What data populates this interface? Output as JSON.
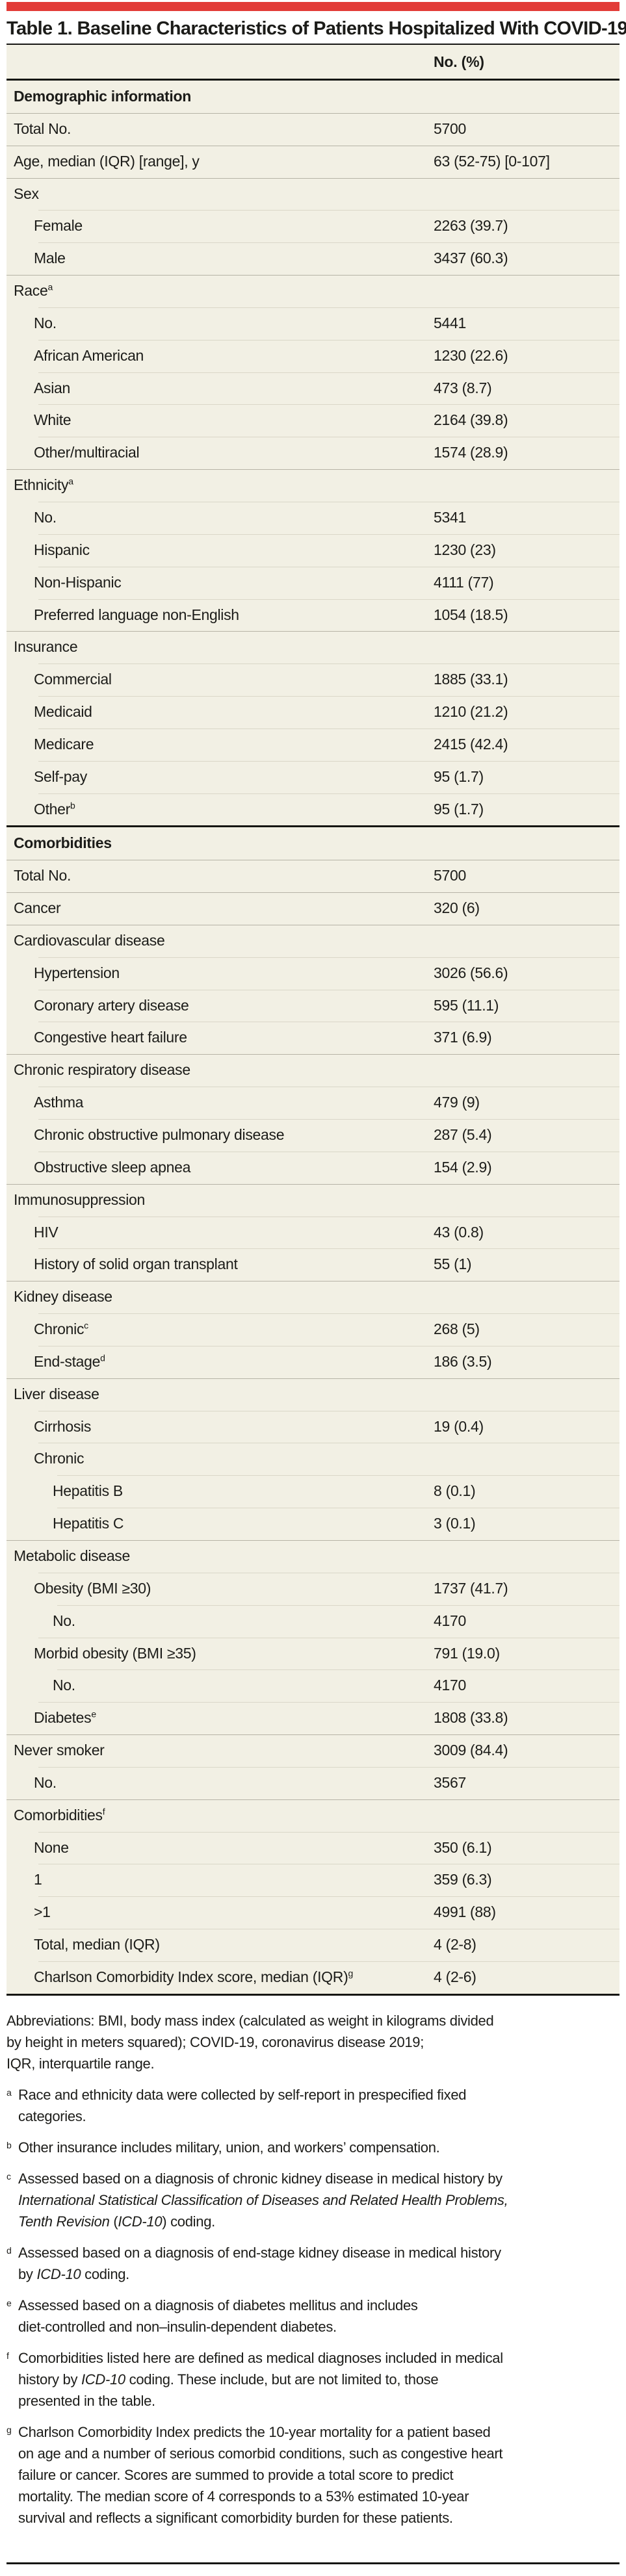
{
  "page": {
    "title": "Table 1. Baseline Characteristics of Patients Hospitalized With COVID-19"
  },
  "colors": {
    "accent_red": "#e23c38",
    "table_background": "#f2f0e4",
    "separator_dark": "#b6b3a6",
    "separator_light": "#dad7c8",
    "rule_black": "#161613",
    "text": "#1c1c19"
  },
  "table": {
    "value_header": "No. (%)",
    "sections": [
      {
        "header": "Demographic information",
        "rows": [
          {
            "label": "Total No.",
            "value": "5700",
            "indent": 0,
            "sup": ""
          },
          {
            "label": "Age, median (IQR) [range], y",
            "value": "63 (52-75) [0-107]",
            "indent": 0,
            "sup": ""
          },
          {
            "label": "Sex",
            "value": "",
            "indent": 0,
            "sup": ""
          },
          {
            "label": "Female",
            "value": "2263 (39.7)",
            "indent": 1,
            "sup": ""
          },
          {
            "label": "Male",
            "value": "3437 (60.3)",
            "indent": 1,
            "sup": ""
          },
          {
            "label": "Race",
            "value": "",
            "indent": 0,
            "sup": "a"
          },
          {
            "label": "No.",
            "value": "5441",
            "indent": 1,
            "sup": ""
          },
          {
            "label": "African American",
            "value": "1230 (22.6)",
            "indent": 1,
            "sup": ""
          },
          {
            "label": "Asian",
            "value": "473 (8.7)",
            "indent": 1,
            "sup": ""
          },
          {
            "label": "White",
            "value": "2164 (39.8)",
            "indent": 1,
            "sup": ""
          },
          {
            "label": "Other/multiracial",
            "value": "1574 (28.9)",
            "indent": 1,
            "sup": ""
          },
          {
            "label": "Ethnicity",
            "value": "",
            "indent": 0,
            "sup": "a"
          },
          {
            "label": "No.",
            "value": "5341",
            "indent": 1,
            "sup": ""
          },
          {
            "label": "Hispanic",
            "value": "1230 (23)",
            "indent": 1,
            "sup": ""
          },
          {
            "label": "Non-Hispanic",
            "value": "4111 (77)",
            "indent": 1,
            "sup": ""
          },
          {
            "label": "Preferred language non-English",
            "value": "1054 (18.5)",
            "indent": 1,
            "sup": ""
          },
          {
            "label": "Insurance",
            "value": "",
            "indent": 0,
            "sup": ""
          },
          {
            "label": "Commercial",
            "value": "1885 (33.1)",
            "indent": 1,
            "sup": ""
          },
          {
            "label": "Medicaid",
            "value": "1210 (21.2)",
            "indent": 1,
            "sup": ""
          },
          {
            "label": "Medicare",
            "value": "2415 (42.4)",
            "indent": 1,
            "sup": ""
          },
          {
            "label": "Self-pay",
            "value": "95 (1.7)",
            "indent": 1,
            "sup": ""
          },
          {
            "label": "Other",
            "value": "95 (1.7)",
            "indent": 1,
            "sup": "b"
          }
        ]
      },
      {
        "header": "Comorbidities",
        "rows": [
          {
            "label": "Total No.",
            "value": "5700",
            "indent": 0,
            "sup": ""
          },
          {
            "label": "Cancer",
            "value": "320 (6)",
            "indent": 0,
            "sup": ""
          },
          {
            "label": "Cardiovascular disease",
            "value": "",
            "indent": 0,
            "sup": ""
          },
          {
            "label": "Hypertension",
            "value": "3026 (56.6)",
            "indent": 1,
            "sup": ""
          },
          {
            "label": "Coronary artery disease",
            "value": "595 (11.1)",
            "indent": 1,
            "sup": ""
          },
          {
            "label": "Congestive heart failure",
            "value": "371 (6.9)",
            "indent": 1,
            "sup": ""
          },
          {
            "label": "Chronic respiratory disease",
            "value": "",
            "indent": 0,
            "sup": ""
          },
          {
            "label": "Asthma",
            "value": "479 (9)",
            "indent": 1,
            "sup": ""
          },
          {
            "label": "Chronic obstructive pulmonary disease",
            "value": "287 (5.4)",
            "indent": 1,
            "sup": ""
          },
          {
            "label": "Obstructive sleep apnea",
            "value": "154 (2.9)",
            "indent": 1,
            "sup": ""
          },
          {
            "label": "Immunosuppression",
            "value": "",
            "indent": 0,
            "sup": ""
          },
          {
            "label": "HIV",
            "value": "43 (0.8)",
            "indent": 1,
            "sup": ""
          },
          {
            "label": "History of solid organ transplant",
            "value": "55 (1)",
            "indent": 1,
            "sup": ""
          },
          {
            "label": "Kidney disease",
            "value": "",
            "indent": 0,
            "sup": ""
          },
          {
            "label": "Chronic",
            "value": "268 (5)",
            "indent": 1,
            "sup": "c"
          },
          {
            "label": "End-stage",
            "value": "186 (3.5)",
            "indent": 1,
            "sup": "d"
          },
          {
            "label": "Liver disease",
            "value": "",
            "indent": 0,
            "sup": ""
          },
          {
            "label": "Cirrhosis",
            "value": "19 (0.4)",
            "indent": 1,
            "sup": ""
          },
          {
            "label": "Chronic",
            "value": "",
            "indent": 1,
            "sup": ""
          },
          {
            "label": "Hepatitis B",
            "value": "8 (0.1)",
            "indent": 2,
            "sup": ""
          },
          {
            "label": "Hepatitis C",
            "value": "3 (0.1)",
            "indent": 2,
            "sup": ""
          },
          {
            "label": "Metabolic disease",
            "value": "",
            "indent": 0,
            "sup": ""
          },
          {
            "label": "Obesity (BMI ≥30)",
            "value": "1737 (41.7)",
            "indent": 1,
            "sup": ""
          },
          {
            "label": "No.",
            "value": "4170",
            "indent": 2,
            "sup": ""
          },
          {
            "label": "Morbid obesity (BMI ≥35)",
            "value": "791 (19.0)",
            "indent": 1,
            "sup": ""
          },
          {
            "label": "No.",
            "value": "4170",
            "indent": 2,
            "sup": ""
          },
          {
            "label": "Diabetes",
            "value": "1808 (33.8)",
            "indent": 1,
            "sup": "e"
          },
          {
            "label": "Never smoker",
            "value": "3009 (84.4)",
            "indent": 0,
            "sup": ""
          },
          {
            "label": "No.",
            "value": "3567",
            "indent": 1,
            "sup": ""
          },
          {
            "label": "Comorbidities",
            "value": "",
            "indent": 0,
            "sup": "f"
          },
          {
            "label": "None",
            "value": "350 (6.1)",
            "indent": 1,
            "sup": ""
          },
          {
            "label": "1",
            "value": "359 (6.3)",
            "indent": 1,
            "sup": ""
          },
          {
            "label": ">1",
            "value": "4991 (88)",
            "indent": 1,
            "sup": ""
          },
          {
            "label": "Total, median (IQR)",
            "value": "4 (2-8)",
            "indent": 1,
            "sup": ""
          },
          {
            "label": "Charlson Comorbidity Index score, median (IQR)",
            "value": "4 (2-6)",
            "indent": 1,
            "sup": "g"
          }
        ]
      }
    ]
  },
  "footnotes": {
    "abbreviations": {
      "lines": [
        [
          {
            "t": "Abbreviations: BMI, body mass index (calculated as weight in kilograms divided"
          }
        ],
        [
          {
            "t": "by height in meters squared); COVID-19, coronavirus disease 2019;"
          }
        ],
        [
          {
            "t": "IQR, interquartile range."
          }
        ]
      ]
    },
    "items": [
      {
        "mark": "a",
        "lines": [
          [
            {
              "t": "Race and ethnicity data were collected by self-report in prespecified fixed"
            }
          ],
          [
            {
              "t": "categories."
            }
          ]
        ]
      },
      {
        "mark": "b",
        "lines": [
          [
            {
              "t": "Other insurance includes military, union, and workers’ compensation."
            }
          ]
        ]
      },
      {
        "mark": "c",
        "lines": [
          [
            {
              "t": "Assessed based on a diagnosis of chronic kidney disease in medical history by"
            }
          ],
          [
            {
              "t": "International Statistical Classification of Diseases and Related Health Problems,",
              "i": true
            }
          ],
          [
            {
              "t": "Tenth Revision",
              "i": true
            },
            {
              "t": " ("
            },
            {
              "t": "ICD-10",
              "i": true
            },
            {
              "t": ") coding."
            }
          ]
        ]
      },
      {
        "mark": "d",
        "lines": [
          [
            {
              "t": "Assessed based on a diagnosis of end-stage kidney disease in medical history"
            }
          ],
          [
            {
              "t": "by "
            },
            {
              "t": "ICD-10",
              "i": true
            },
            {
              "t": " coding."
            }
          ]
        ]
      },
      {
        "mark": "e",
        "lines": [
          [
            {
              "t": "Assessed based on a diagnosis of diabetes mellitus and includes"
            }
          ],
          [
            {
              "t": "diet-controlled and non–insulin-dependent diabetes."
            }
          ]
        ]
      },
      {
        "mark": "f",
        "lines": [
          [
            {
              "t": "Comorbidities listed here are defined as medical diagnoses included in medical"
            }
          ],
          [
            {
              "t": "history by "
            },
            {
              "t": "ICD-10",
              "i": true
            },
            {
              "t": " coding. These include, but are not limited to, those"
            }
          ],
          [
            {
              "t": "presented in the table."
            }
          ]
        ]
      },
      {
        "mark": "g",
        "lines": [
          [
            {
              "t": "Charlson Comorbidity Index predicts the 10-year mortality for a patient based"
            }
          ],
          [
            {
              "t": "on age and a number of serious comorbid conditions, such as congestive heart"
            }
          ],
          [
            {
              "t": "failure or cancer. Scores are summed to provide a total score to predict"
            }
          ],
          [
            {
              "t": "mortality. The median score of 4 corresponds to a 53% estimated 10-year"
            }
          ],
          [
            {
              "t": "survival and reflects a significant comorbidity burden for these patients."
            }
          ]
        ]
      }
    ]
  }
}
